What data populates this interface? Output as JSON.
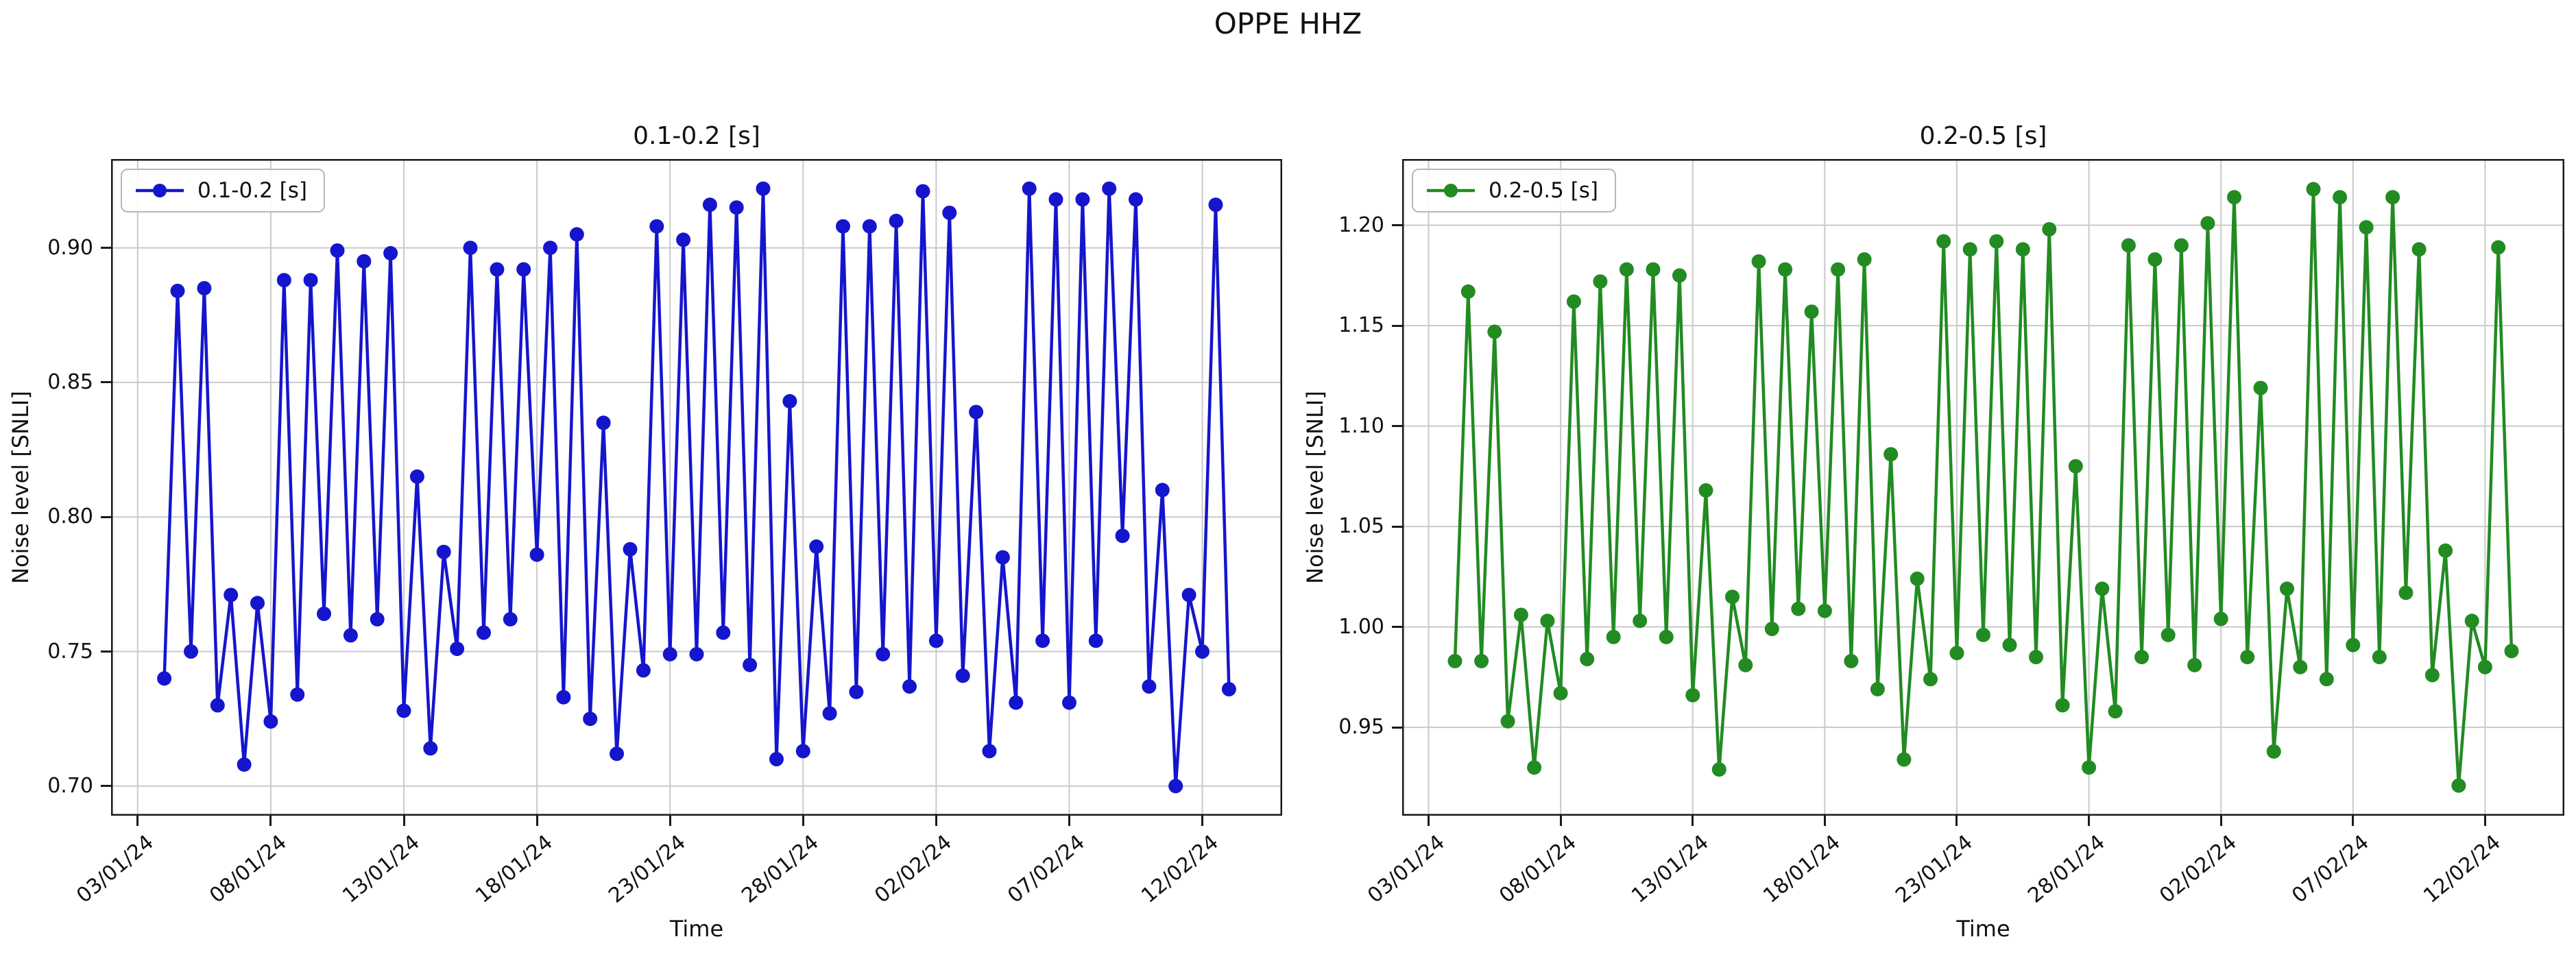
{
  "figure": {
    "title": "OPPE HHZ",
    "background_color": "#ffffff",
    "grid_color": "#c9c9c9",
    "text_color": "#111111"
  },
  "chart_data": [
    {
      "type": "line",
      "title": "0.1-0.2 [s]",
      "legend": "0.1-0.2 [s]",
      "legend_position": "upper left",
      "color": "#1515cd",
      "xlabel": "Time",
      "ylabel": "Noise level [SNLI]",
      "grid": true,
      "x_tick_labels": [
        "03/01/24",
        "08/01/24",
        "13/01/24",
        "18/01/24",
        "23/01/24",
        "28/01/24",
        "02/02/24",
        "07/02/24",
        "12/02/24"
      ],
      "x_axis": {
        "span_days": 44,
        "first_point_day": 2.0,
        "point_step_days": 0.5,
        "tick_first_day": 1,
        "tick_step_days": 5,
        "first_point_date": "04/01/24"
      },
      "y_tick_labels": [
        "0.70",
        "0.75",
        "0.80",
        "0.85",
        "0.90"
      ],
      "y_tick_values": [
        0.7,
        0.75,
        0.8,
        0.85,
        0.9
      ],
      "ylim": [
        0.689,
        0.933
      ],
      "values": [
        0.74,
        0.884,
        0.75,
        0.885,
        0.73,
        0.771,
        0.708,
        0.768,
        0.724,
        0.888,
        0.734,
        0.888,
        0.764,
        0.899,
        0.756,
        0.895,
        0.762,
        0.898,
        0.728,
        0.815,
        0.714,
        0.787,
        0.751,
        0.9,
        0.757,
        0.892,
        0.762,
        0.892,
        0.786,
        0.9,
        0.733,
        0.905,
        0.725,
        0.835,
        0.712,
        0.788,
        0.743,
        0.908,
        0.749,
        0.903,
        0.749,
        0.916,
        0.757,
        0.915,
        0.745,
        0.922,
        0.71,
        0.843,
        0.713,
        0.789,
        0.727,
        0.908,
        0.735,
        0.908,
        0.749,
        0.91,
        0.737,
        0.921,
        0.754,
        0.913,
        0.741,
        0.839,
        0.713,
        0.785,
        0.731,
        0.922,
        0.754,
        0.918,
        0.731,
        0.918,
        0.754,
        0.922,
        0.793,
        0.918,
        0.737,
        0.81,
        0.7,
        0.771,
        0.75,
        0.916,
        0.736
      ]
    },
    {
      "type": "line",
      "title": "0.2-0.5 [s]",
      "legend": "0.2-0.5 [s]",
      "legend_position": "upper left",
      "color": "#228B22",
      "xlabel": "Time",
      "ylabel": "Noise level [SNLI]",
      "grid": true,
      "x_tick_labels": [
        "03/01/24",
        "08/01/24",
        "13/01/24",
        "18/01/24",
        "23/01/24",
        "28/01/24",
        "02/02/24",
        "07/02/24",
        "12/02/24"
      ],
      "x_axis": {
        "span_days": 44,
        "first_point_day": 2.0,
        "point_step_days": 0.5,
        "tick_first_day": 1,
        "tick_step_days": 5,
        "first_point_date": "04/01/24"
      },
      "y_tick_labels": [
        "0.95",
        "1.00",
        "1.05",
        "1.10",
        "1.15",
        "1.20"
      ],
      "y_tick_values": [
        0.95,
        1.0,
        1.05,
        1.1,
        1.15,
        1.2
      ],
      "ylim": [
        0.906,
        1.233
      ],
      "values": [
        0.983,
        1.167,
        0.983,
        1.147,
        0.953,
        1.006,
        0.93,
        1.003,
        0.967,
        1.162,
        0.984,
        1.172,
        0.995,
        1.178,
        1.003,
        1.178,
        0.995,
        1.175,
        0.966,
        1.068,
        0.929,
        1.015,
        0.981,
        1.182,
        0.999,
        1.178,
        1.009,
        1.157,
        1.008,
        1.178,
        0.983,
        1.183,
        0.969,
        1.086,
        0.934,
        1.024,
        0.974,
        1.192,
        0.987,
        1.188,
        0.996,
        1.192,
        0.991,
        1.188,
        0.985,
        1.198,
        0.961,
        1.08,
        0.93,
        1.019,
        0.958,
        1.19,
        0.985,
        1.183,
        0.996,
        1.19,
        0.981,
        1.201,
        1.004,
        1.214,
        0.985,
        1.119,
        0.938,
        1.019,
        0.98,
        1.218,
        0.974,
        1.214,
        0.991,
        1.199,
        0.985,
        1.214,
        1.017,
        1.188,
        0.976,
        1.038,
        0.921,
        1.003,
        0.98,
        1.189,
        0.988
      ]
    }
  ]
}
